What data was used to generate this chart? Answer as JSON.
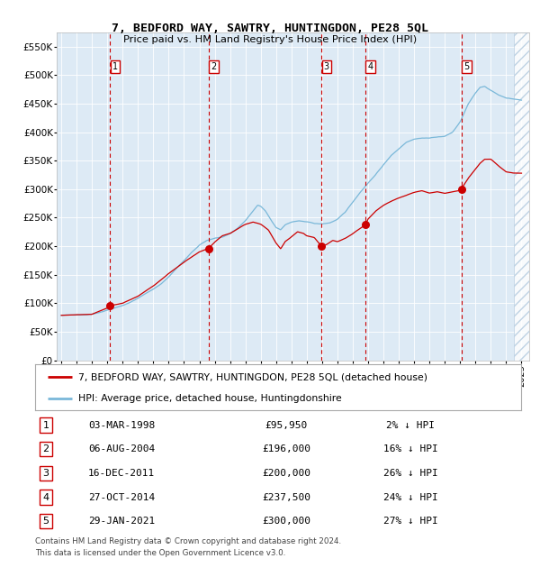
{
  "title": "7, BEDFORD WAY, SAWTRY, HUNTINGDON, PE28 5QL",
  "subtitle": "Price paid vs. HM Land Registry's House Price Index (HPI)",
  "legend_line1": "7, BEDFORD WAY, SAWTRY, HUNTINGDON, PE28 5QL (detached house)",
  "legend_line2": "HPI: Average price, detached house, Huntingdonshire",
  "footer1": "Contains HM Land Registry data © Crown copyright and database right 2024.",
  "footer2": "This data is licensed under the Open Government Licence v3.0.",
  "transactions": [
    {
      "num": 1,
      "price": 95950,
      "x_year": 1998.17
    },
    {
      "num": 2,
      "price": 196000,
      "x_year": 2004.59
    },
    {
      "num": 3,
      "price": 200000,
      "x_year": 2011.96
    },
    {
      "num": 4,
      "price": 237500,
      "x_year": 2014.82
    },
    {
      "num": 5,
      "price": 300000,
      "x_year": 2021.08
    }
  ],
  "table_rows": [
    [
      "1",
      "03-MAR-1998",
      "£95,950",
      "2% ↓ HPI"
    ],
    [
      "2",
      "06-AUG-2004",
      "£196,000",
      "16% ↓ HPI"
    ],
    [
      "3",
      "16-DEC-2011",
      "£200,000",
      "26% ↓ HPI"
    ],
    [
      "4",
      "27-OCT-2014",
      "£237,500",
      "24% ↓ HPI"
    ],
    [
      "5",
      "29-JAN-2021",
      "£300,000",
      "27% ↓ HPI"
    ]
  ],
  "ylim": [
    0,
    575000
  ],
  "yticks": [
    0,
    50000,
    100000,
    150000,
    200000,
    250000,
    300000,
    350000,
    400000,
    450000,
    500000,
    550000
  ],
  "ytick_labels": [
    "£0",
    "£50K",
    "£100K",
    "£150K",
    "£200K",
    "£250K",
    "£300K",
    "£350K",
    "£400K",
    "£450K",
    "£500K",
    "£550K"
  ],
  "xlim_start": 1994.7,
  "xlim_end": 2025.5,
  "hpi_color": "#7ab8d9",
  "price_color": "#cc0000",
  "dot_color": "#cc0000",
  "vline_color": "#cc0000",
  "bg_color": "#ddeaf5",
  "grid_color": "#ffffff",
  "hatch_color": "#b0c8de",
  "hpi_anchors": [
    [
      1995.0,
      79000
    ],
    [
      1995.5,
      79500
    ],
    [
      1996.0,
      80000
    ],
    [
      1996.5,
      80500
    ],
    [
      1997.0,
      82000
    ],
    [
      1997.5,
      85000
    ],
    [
      1998.0,
      89000
    ],
    [
      1998.5,
      93000
    ],
    [
      1999.0,
      97000
    ],
    [
      1999.5,
      103000
    ],
    [
      2000.0,
      110000
    ],
    [
      2000.5,
      118000
    ],
    [
      2001.0,
      126000
    ],
    [
      2001.5,
      135000
    ],
    [
      2002.0,
      147000
    ],
    [
      2002.5,
      162000
    ],
    [
      2003.0,
      175000
    ],
    [
      2003.5,
      190000
    ],
    [
      2004.0,
      202000
    ],
    [
      2004.5,
      210000
    ],
    [
      2005.0,
      214000
    ],
    [
      2005.5,
      216000
    ],
    [
      2006.0,
      222000
    ],
    [
      2006.5,
      232000
    ],
    [
      2007.0,
      245000
    ],
    [
      2007.5,
      262000
    ],
    [
      2007.8,
      272000
    ],
    [
      2008.0,
      270000
    ],
    [
      2008.3,
      262000
    ],
    [
      2008.6,
      248000
    ],
    [
      2009.0,
      232000
    ],
    [
      2009.3,
      228000
    ],
    [
      2009.6,
      237000
    ],
    [
      2010.0,
      242000
    ],
    [
      2010.5,
      244000
    ],
    [
      2011.0,
      242000
    ],
    [
      2011.5,
      239000
    ],
    [
      2012.0,
      238000
    ],
    [
      2012.5,
      240000
    ],
    [
      2013.0,
      246000
    ],
    [
      2013.5,
      258000
    ],
    [
      2014.0,
      276000
    ],
    [
      2014.5,
      294000
    ],
    [
      2015.0,
      310000
    ],
    [
      2015.5,
      325000
    ],
    [
      2016.0,
      342000
    ],
    [
      2016.5,
      358000
    ],
    [
      2017.0,
      370000
    ],
    [
      2017.5,
      382000
    ],
    [
      2018.0,
      388000
    ],
    [
      2018.5,
      390000
    ],
    [
      2019.0,
      390000
    ],
    [
      2019.5,
      392000
    ],
    [
      2020.0,
      393000
    ],
    [
      2020.5,
      400000
    ],
    [
      2021.0,
      418000
    ],
    [
      2021.5,
      448000
    ],
    [
      2022.0,
      468000
    ],
    [
      2022.3,
      478000
    ],
    [
      2022.6,
      480000
    ],
    [
      2023.0,
      473000
    ],
    [
      2023.5,
      465000
    ],
    [
      2024.0,
      460000
    ],
    [
      2024.5,
      458000
    ],
    [
      2025.0,
      456000
    ]
  ],
  "red_anchors": [
    [
      1995.0,
      79000
    ],
    [
      1996.0,
      80000
    ],
    [
      1997.0,
      81000
    ],
    [
      1998.0,
      92000
    ],
    [
      1998.17,
      95950
    ],
    [
      1999.0,
      100000
    ],
    [
      2000.0,
      112000
    ],
    [
      2001.0,
      130000
    ],
    [
      2002.0,
      152000
    ],
    [
      2003.0,
      172000
    ],
    [
      2004.0,
      190000
    ],
    [
      2004.59,
      196000
    ],
    [
      2005.0,
      207000
    ],
    [
      2005.5,
      218000
    ],
    [
      2006.0,
      222000
    ],
    [
      2006.5,
      230000
    ],
    [
      2007.0,
      238000
    ],
    [
      2007.5,
      242000
    ],
    [
      2008.0,
      238000
    ],
    [
      2008.5,
      228000
    ],
    [
      2009.0,
      205000
    ],
    [
      2009.3,
      195000
    ],
    [
      2009.6,
      208000
    ],
    [
      2010.0,
      216000
    ],
    [
      2010.4,
      225000
    ],
    [
      2010.8,
      222000
    ],
    [
      2011.0,
      218000
    ],
    [
      2011.5,
      215000
    ],
    [
      2011.96,
      200000
    ],
    [
      2012.3,
      203000
    ],
    [
      2012.7,
      210000
    ],
    [
      2013.0,
      208000
    ],
    [
      2013.5,
      214000
    ],
    [
      2014.0,
      222000
    ],
    [
      2014.5,
      232000
    ],
    [
      2014.82,
      237500
    ],
    [
      2015.0,
      248000
    ],
    [
      2015.5,
      262000
    ],
    [
      2016.0,
      272000
    ],
    [
      2016.5,
      279000
    ],
    [
      2017.0,
      285000
    ],
    [
      2017.5,
      290000
    ],
    [
      2018.0,
      295000
    ],
    [
      2018.5,
      298000
    ],
    [
      2019.0,
      294000
    ],
    [
      2019.5,
      296000
    ],
    [
      2020.0,
      293000
    ],
    [
      2020.5,
      295000
    ],
    [
      2021.0,
      298000
    ],
    [
      2021.08,
      300000
    ],
    [
      2021.5,
      318000
    ],
    [
      2022.0,
      335000
    ],
    [
      2022.3,
      345000
    ],
    [
      2022.6,
      352000
    ],
    [
      2023.0,
      352000
    ],
    [
      2023.3,
      345000
    ],
    [
      2023.6,
      338000
    ],
    [
      2024.0,
      330000
    ],
    [
      2024.5,
      328000
    ],
    [
      2025.0,
      328000
    ]
  ]
}
